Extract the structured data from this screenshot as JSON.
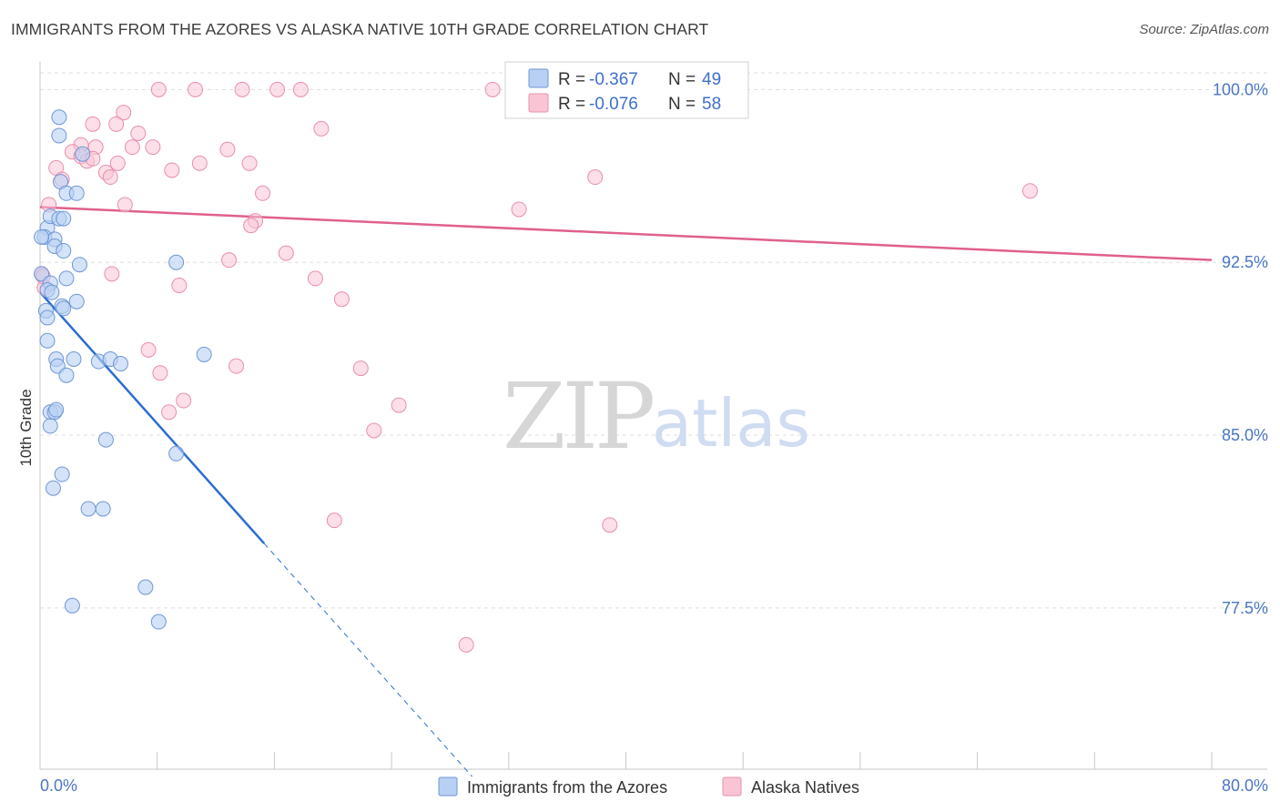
{
  "header": {
    "title": "IMMIGRANTS FROM THE AZORES VS ALASKA NATIVE 10TH GRADE CORRELATION CHART",
    "source": "Source: ZipAtlas.com"
  },
  "watermark": {
    "part1": "ZIP",
    "part2": "atlas"
  },
  "chart_data": {
    "type": "scatter",
    "ylabel": "10th Grade",
    "xlim": [
      0,
      80
    ],
    "ylim": [
      70.5,
      101.2
    ],
    "x_tick_labels": [
      "0.0%",
      "80.0%"
    ],
    "y_ticks": [
      {
        "value": 100.0,
        "label": "100.0%"
      },
      {
        "value": 92.5,
        "label": "92.5%"
      },
      {
        "value": 85.0,
        "label": "85.0%"
      },
      {
        "value": 77.5,
        "label": "77.5%"
      }
    ],
    "colors": {
      "blue_fill": "#b8d0f3",
      "blue_stroke": "#6f96d6",
      "blue_line": "#2b6dd1",
      "pink_fill": "#f9c5d5",
      "pink_stroke": "#e98fab",
      "pink_line": "#e0608b",
      "grid": "#dddddd",
      "axis_label": "#4a76c4"
    },
    "legend": {
      "rows": [
        {
          "r_label": "R =",
          "r_value": "-0.367",
          "n_label": "N =",
          "n_value": "49"
        },
        {
          "r_label": "R =",
          "r_value": "-0.076",
          "n_label": "N =",
          "n_value": "58"
        }
      ]
    },
    "series": [
      {
        "name": "Immigrants from the Azores",
        "color": "blue",
        "trend": {
          "x1": 0.0,
          "y1": 91.2,
          "x2": 15.3,
          "y2": 80.3,
          "dash_to_x": 29.5
        },
        "points": [
          [
            1.3,
            98.8
          ],
          [
            1.3,
            98.0
          ],
          [
            1.4,
            96.0
          ],
          [
            1.8,
            95.5
          ],
          [
            2.5,
            95.5
          ],
          [
            2.9,
            97.2
          ],
          [
            0.5,
            94.0
          ],
          [
            0.7,
            94.5
          ],
          [
            1.3,
            94.4
          ],
          [
            1.6,
            94.4
          ],
          [
            0.3,
            93.6
          ],
          [
            1.0,
            93.5
          ],
          [
            1.0,
            93.2
          ],
          [
            1.6,
            93.0
          ],
          [
            2.7,
            92.4
          ],
          [
            0.1,
            92.0
          ],
          [
            0.7,
            91.6
          ],
          [
            1.8,
            91.8
          ],
          [
            0.5,
            91.3
          ],
          [
            0.8,
            91.2
          ],
          [
            2.5,
            90.8
          ],
          [
            1.5,
            90.6
          ],
          [
            1.6,
            90.5
          ],
          [
            0.4,
            90.4
          ],
          [
            0.5,
            90.1
          ],
          [
            0.5,
            89.1
          ],
          [
            1.1,
            88.3
          ],
          [
            2.3,
            88.3
          ],
          [
            1.2,
            88.0
          ],
          [
            1.8,
            87.6
          ],
          [
            4.0,
            88.2
          ],
          [
            4.8,
            88.3
          ],
          [
            5.5,
            88.1
          ],
          [
            9.3,
            92.5
          ],
          [
            11.2,
            88.5
          ],
          [
            0.7,
            86.0
          ],
          [
            1.0,
            86.0
          ],
          [
            1.1,
            86.1
          ],
          [
            0.7,
            85.4
          ],
          [
            4.5,
            84.8
          ],
          [
            9.3,
            84.2
          ],
          [
            1.5,
            83.3
          ],
          [
            0.9,
            82.7
          ],
          [
            3.3,
            81.8
          ],
          [
            4.3,
            81.8
          ],
          [
            7.2,
            78.4
          ],
          [
            2.2,
            77.6
          ],
          [
            8.1,
            76.9
          ],
          [
            0.1,
            93.6
          ]
        ]
      },
      {
        "name": "Alaska Natives",
        "color": "pink",
        "trend": {
          "x1": 0.0,
          "y1": 94.9,
          "x2": 80.0,
          "y2": 92.6
        },
        "points": [
          [
            8.1,
            100.0
          ],
          [
            10.6,
            100.0
          ],
          [
            13.8,
            100.0
          ],
          [
            16.2,
            100.0
          ],
          [
            17.8,
            100.0
          ],
          [
            30.9,
            100.0
          ],
          [
            44.4,
            100.0
          ],
          [
            45.5,
            100.0
          ],
          [
            5.7,
            99.0
          ],
          [
            5.2,
            98.5
          ],
          [
            3.6,
            98.5
          ],
          [
            6.7,
            98.1
          ],
          [
            19.2,
            98.3
          ],
          [
            2.8,
            97.6
          ],
          [
            3.8,
            97.5
          ],
          [
            6.3,
            97.5
          ],
          [
            7.7,
            97.5
          ],
          [
            12.8,
            97.4
          ],
          [
            2.2,
            97.3
          ],
          [
            2.8,
            97.1
          ],
          [
            3.2,
            96.9
          ],
          [
            3.6,
            97.0
          ],
          [
            5.3,
            96.8
          ],
          [
            10.9,
            96.8
          ],
          [
            14.3,
            96.8
          ],
          [
            1.1,
            96.6
          ],
          [
            4.5,
            96.4
          ],
          [
            9.0,
            96.5
          ],
          [
            4.8,
            96.2
          ],
          [
            1.5,
            96.1
          ],
          [
            37.9,
            96.2
          ],
          [
            15.2,
            95.5
          ],
          [
            67.6,
            95.6
          ],
          [
            0.6,
            95.0
          ],
          [
            5.8,
            95.0
          ],
          [
            32.7,
            94.8
          ],
          [
            14.7,
            94.3
          ],
          [
            14.4,
            94.1
          ],
          [
            16.8,
            92.9
          ],
          [
            12.9,
            92.6
          ],
          [
            4.9,
            92.0
          ],
          [
            18.8,
            91.8
          ],
          [
            9.5,
            91.5
          ],
          [
            0.1,
            92.0
          ],
          [
            20.6,
            90.9
          ],
          [
            7.4,
            88.7
          ],
          [
            8.2,
            87.7
          ],
          [
            13.4,
            88.0
          ],
          [
            21.9,
            87.9
          ],
          [
            9.8,
            86.5
          ],
          [
            8.8,
            86.0
          ],
          [
            24.5,
            86.3
          ],
          [
            22.8,
            85.2
          ],
          [
            20.1,
            81.3
          ],
          [
            38.9,
            81.1
          ],
          [
            29.1,
            75.9
          ],
          [
            0.3,
            91.4
          ],
          [
            0.2,
            91.9
          ]
        ]
      }
    ]
  }
}
